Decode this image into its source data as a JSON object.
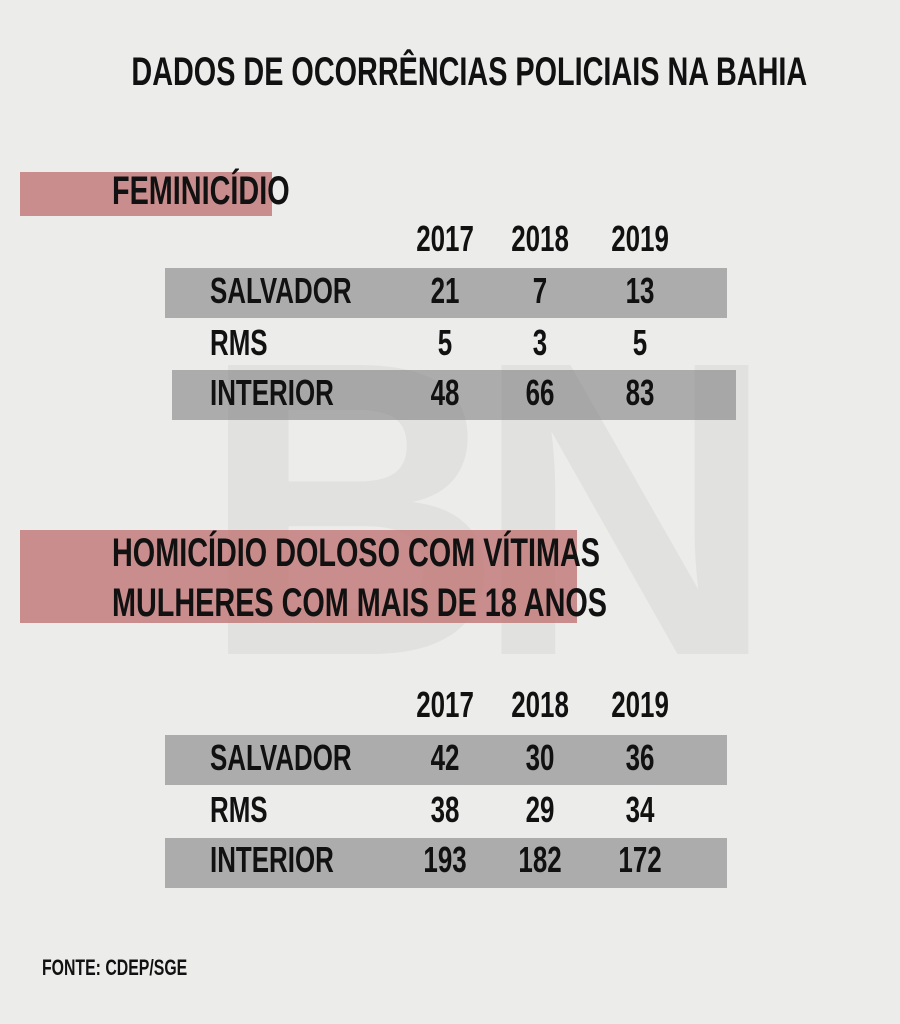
{
  "title": "DADOS DE OCORRÊNCIAS POLICIAIS NA BAHIA",
  "source": "FONTE: CDEP/SGE",
  "colors": {
    "highlight": "#c98484",
    "row_band": "#a9a9a9",
    "background": "#ececea"
  },
  "chart_data": [
    {
      "type": "table",
      "title_lines": [
        "FEMINICÍDIO"
      ],
      "columns": [
        "2017",
        "2018",
        "2019"
      ],
      "rows": [
        {
          "label": "SALVADOR",
          "values": [
            "21",
            "7",
            "13"
          ]
        },
        {
          "label": "RMS",
          "values": [
            "5",
            "3",
            "5"
          ]
        },
        {
          "label": "INTERIOR",
          "values": [
            "48",
            "66",
            "83"
          ]
        }
      ]
    },
    {
      "type": "table",
      "title_lines": [
        "HOMICÍDIO DOLOSO COM VÍTIMAS",
        "MULHERES COM MAIS DE 18 ANOS"
      ],
      "columns": [
        "2017",
        "2018",
        "2019"
      ],
      "rows": [
        {
          "label": "SALVADOR",
          "values": [
            "42",
            "30",
            "36"
          ]
        },
        {
          "label": "RMS",
          "values": [
            "38",
            "29",
            "34"
          ]
        },
        {
          "label": "INTERIOR",
          "values": [
            "193",
            "182",
            "172"
          ]
        }
      ]
    }
  ]
}
